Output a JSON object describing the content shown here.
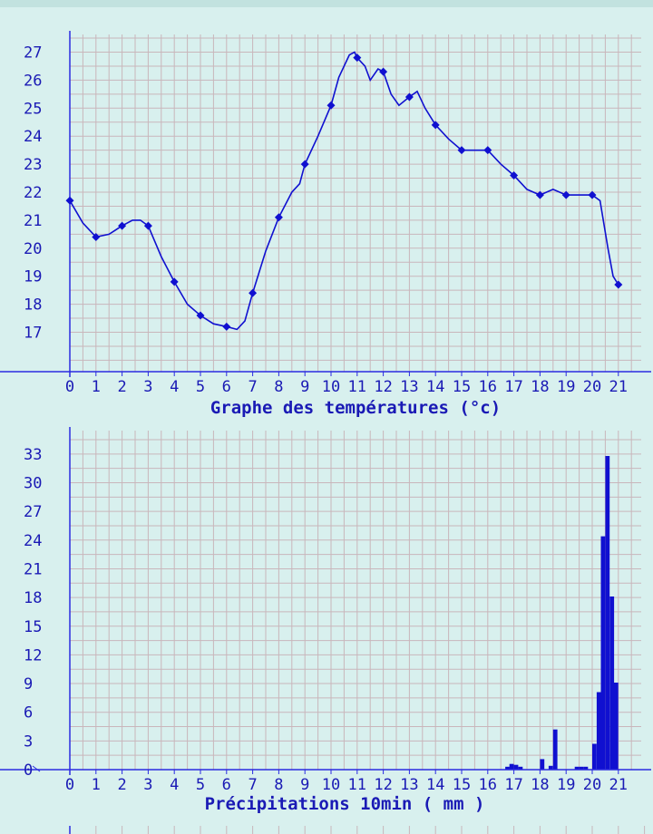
{
  "colors": {
    "background": "#d8f0ee",
    "grid": "#c9b6bb",
    "axis": "#2a2ae0",
    "series": "#1010d0",
    "text": "#1a1ab5"
  },
  "chart_data": [
    {
      "type": "line",
      "title": "Graphe des températures (°c)",
      "xlabel": "Graphe des températures (°c)",
      "ylabel": "",
      "x_ticks": [
        "0",
        "1",
        "2",
        "3",
        "4",
        "5",
        "6",
        "7",
        "8",
        "9",
        "10",
        "11",
        "12",
        "13",
        "14",
        "15",
        "16",
        "17",
        "18",
        "19",
        "20",
        "21"
      ],
      "y_ticks": [
        17,
        18,
        19,
        20,
        21,
        22,
        23,
        24,
        25,
        26,
        27
      ],
      "xlim": [
        0,
        22
      ],
      "ylim": [
        15.6,
        27.8
      ],
      "grid": true,
      "series": [
        {
          "markers": [
            [
              0,
              21.7
            ],
            [
              1,
              20.4
            ],
            [
              2,
              20.8
            ],
            [
              3,
              20.8
            ],
            [
              4,
              18.8
            ],
            [
              5,
              17.6
            ],
            [
              6,
              17.2
            ],
            [
              7,
              18.4
            ],
            [
              8,
              21.1
            ],
            [
              9,
              23.0
            ],
            [
              10,
              25.1
            ],
            [
              11,
              26.8
            ],
            [
              12,
              26.3
            ],
            [
              13,
              25.4
            ],
            [
              14,
              24.4
            ],
            [
              15,
              23.5
            ],
            [
              16,
              23.5
            ],
            [
              17,
              22.6
            ],
            [
              18,
              21.9
            ],
            [
              19,
              21.9
            ],
            [
              20,
              21.9
            ],
            [
              21,
              18.7
            ]
          ],
          "line": [
            [
              0,
              21.7
            ],
            [
              0.5,
              20.9
            ],
            [
              1,
              20.4
            ],
            [
              1.5,
              20.5
            ],
            [
              2,
              20.8
            ],
            [
              2.4,
              21.0
            ],
            [
              2.7,
              21.0
            ],
            [
              3,
              20.8
            ],
            [
              3.5,
              19.7
            ],
            [
              4,
              18.8
            ],
            [
              4.5,
              18.0
            ],
            [
              5,
              17.6
            ],
            [
              5.5,
              17.3
            ],
            [
              6,
              17.2
            ],
            [
              6.4,
              17.1
            ],
            [
              6.7,
              17.4
            ],
            [
              7,
              18.4
            ],
            [
              7.5,
              19.9
            ],
            [
              8,
              21.1
            ],
            [
              8.5,
              22.0
            ],
            [
              8.8,
              22.3
            ],
            [
              9,
              23.0
            ],
            [
              9.5,
              24.0
            ],
            [
              10,
              25.1
            ],
            [
              10.3,
              26.1
            ],
            [
              10.7,
              26.9
            ],
            [
              10.9,
              27.0
            ],
            [
              11.0,
              26.8
            ],
            [
              11.3,
              26.5
            ],
            [
              11.5,
              26.0
            ],
            [
              11.8,
              26.4
            ],
            [
              12,
              26.3
            ],
            [
              12.3,
              25.5
            ],
            [
              12.6,
              25.1
            ],
            [
              13,
              25.4
            ],
            [
              13.3,
              25.6
            ],
            [
              13.6,
              25.0
            ],
            [
              14,
              24.4
            ],
            [
              14.5,
              23.9
            ],
            [
              15,
              23.5
            ],
            [
              15.5,
              23.5
            ],
            [
              16,
              23.5
            ],
            [
              16.5,
              23.0
            ],
            [
              17,
              22.6
            ],
            [
              17.5,
              22.1
            ],
            [
              18,
              21.9
            ],
            [
              18.5,
              22.1
            ],
            [
              19,
              21.9
            ],
            [
              19.5,
              21.9
            ],
            [
              20,
              21.9
            ],
            [
              20.3,
              21.7
            ],
            [
              20.6,
              20.0
            ],
            [
              20.8,
              19.0
            ],
            [
              21,
              18.7
            ]
          ]
        }
      ]
    },
    {
      "type": "bar",
      "title": "Précipitations 10min ( mm )",
      "xlabel": "Précipitations 10min ( mm )",
      "ylabel": "",
      "x_ticks": [
        "0",
        "1",
        "2",
        "3",
        "4",
        "5",
        "6",
        "7",
        "8",
        "9",
        "10",
        "11",
        "12",
        "13",
        "14",
        "15",
        "16",
        "17",
        "18",
        "19",
        "20",
        "21"
      ],
      "y_ticks": [
        0,
        3,
        6,
        9,
        12,
        15,
        18,
        21,
        24,
        27,
        30,
        33
      ],
      "xlim": [
        0,
        22
      ],
      "ylim": [
        0,
        35
      ],
      "grid": true,
      "bin_width_hours": 0.1667,
      "bars": [
        [
          16.67,
          0.3
        ],
        [
          16.83,
          0.6
        ],
        [
          17.0,
          0.5
        ],
        [
          17.17,
          0.3
        ],
        [
          18.0,
          1.1
        ],
        [
          18.33,
          0.4
        ],
        [
          18.5,
          4.2
        ],
        [
          19.33,
          0.3
        ],
        [
          19.5,
          0.3
        ],
        [
          19.67,
          0.3
        ],
        [
          20.0,
          2.7
        ],
        [
          20.17,
          8.1
        ],
        [
          20.33,
          24.4
        ],
        [
          20.5,
          32.8
        ],
        [
          20.67,
          18.1
        ],
        [
          20.83,
          9.1
        ]
      ]
    }
  ]
}
